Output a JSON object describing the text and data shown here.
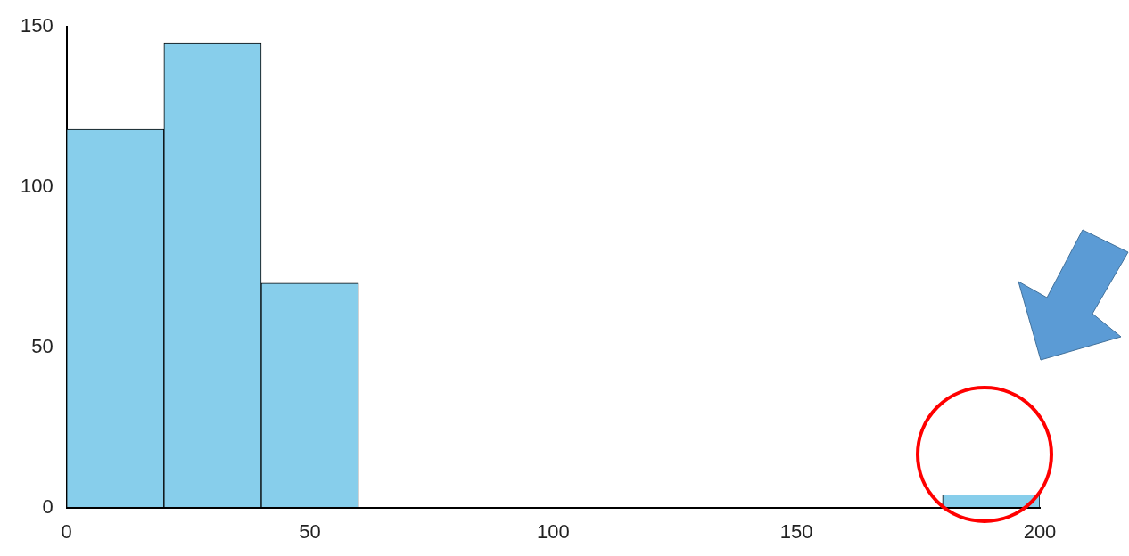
{
  "chart_data": {
    "type": "histogram",
    "bins": [
      0,
      20,
      40,
      60,
      80,
      100,
      120,
      140,
      160,
      180,
      200
    ],
    "values": [
      118,
      145,
      70,
      0,
      0,
      0,
      0,
      0,
      0,
      4
    ],
    "color": "#87ceeb",
    "xlim": [
      0,
      200
    ],
    "xticks": [
      0,
      50,
      100,
      150,
      200
    ],
    "ylim": [
      0,
      150
    ],
    "yticks": [
      0,
      50,
      100,
      150
    ],
    "grid": false,
    "legend": false
  }
}
